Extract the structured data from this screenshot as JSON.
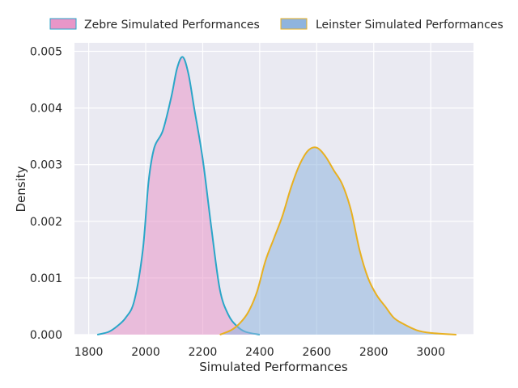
{
  "chart_data": {
    "type": "area",
    "xlabel": "Simulated Performances",
    "ylabel": "Density",
    "xlim": [
      1750,
      3150
    ],
    "ylim": [
      0,
      0.00515
    ],
    "x_ticks": [
      1800,
      2000,
      2200,
      2400,
      2600,
      2800,
      3000
    ],
    "x_tick_labels": [
      "1800",
      "2000",
      "2200",
      "2400",
      "2600",
      "2800",
      "3000"
    ],
    "y_ticks": [
      0,
      0.001,
      0.002,
      0.003,
      0.004,
      0.005
    ],
    "y_tick_labels": [
      "0.000",
      "0.001",
      "0.002",
      "0.003",
      "0.004",
      "0.005"
    ],
    "grid": true,
    "legend_position": "top, outside plot",
    "series": [
      {
        "name": "Zebre Simulated Performances",
        "fill_color": "#e896c8",
        "line_color": "#2aa6c8",
        "points": [
          [
            1830,
            0.0
          ],
          [
            1870,
            5e-05
          ],
          [
            1900,
            0.00015
          ],
          [
            1930,
            0.0003
          ],
          [
            1960,
            0.0006
          ],
          [
            1990,
            0.0015
          ],
          [
            2010,
            0.0027
          ],
          [
            2030,
            0.0033
          ],
          [
            2060,
            0.0036
          ],
          [
            2090,
            0.0042
          ],
          [
            2110,
            0.0047
          ],
          [
            2130,
            0.0049
          ],
          [
            2150,
            0.0046
          ],
          [
            2170,
            0.004
          ],
          [
            2200,
            0.0031
          ],
          [
            2230,
            0.0019
          ],
          [
            2260,
            0.0008
          ],
          [
            2290,
            0.00035
          ],
          [
            2320,
            0.00015
          ],
          [
            2350,
            5e-05
          ],
          [
            2400,
            0.0
          ]
        ]
      },
      {
        "name": "Leinster Simulated Performances",
        "fill_color": "#8fb4de",
        "line_color": "#e8b020",
        "points": [
          [
            2260,
            0.0
          ],
          [
            2300,
            8e-05
          ],
          [
            2330,
            0.0002
          ],
          [
            2360,
            0.0004
          ],
          [
            2390,
            0.00075
          ],
          [
            2420,
            0.0013
          ],
          [
            2450,
            0.0017
          ],
          [
            2480,
            0.0021
          ],
          [
            2510,
            0.0026
          ],
          [
            2540,
            0.003
          ],
          [
            2570,
            0.00325
          ],
          [
            2600,
            0.0033
          ],
          [
            2630,
            0.00315
          ],
          [
            2660,
            0.0029
          ],
          [
            2690,
            0.00265
          ],
          [
            2720,
            0.0022
          ],
          [
            2750,
            0.0015
          ],
          [
            2780,
            0.001
          ],
          [
            2810,
            0.0007
          ],
          [
            2840,
            0.0005
          ],
          [
            2870,
            0.0003
          ],
          [
            2900,
            0.0002
          ],
          [
            2950,
            8e-05
          ],
          [
            3000,
            3e-05
          ],
          [
            3090,
            0.0
          ]
        ]
      }
    ]
  }
}
